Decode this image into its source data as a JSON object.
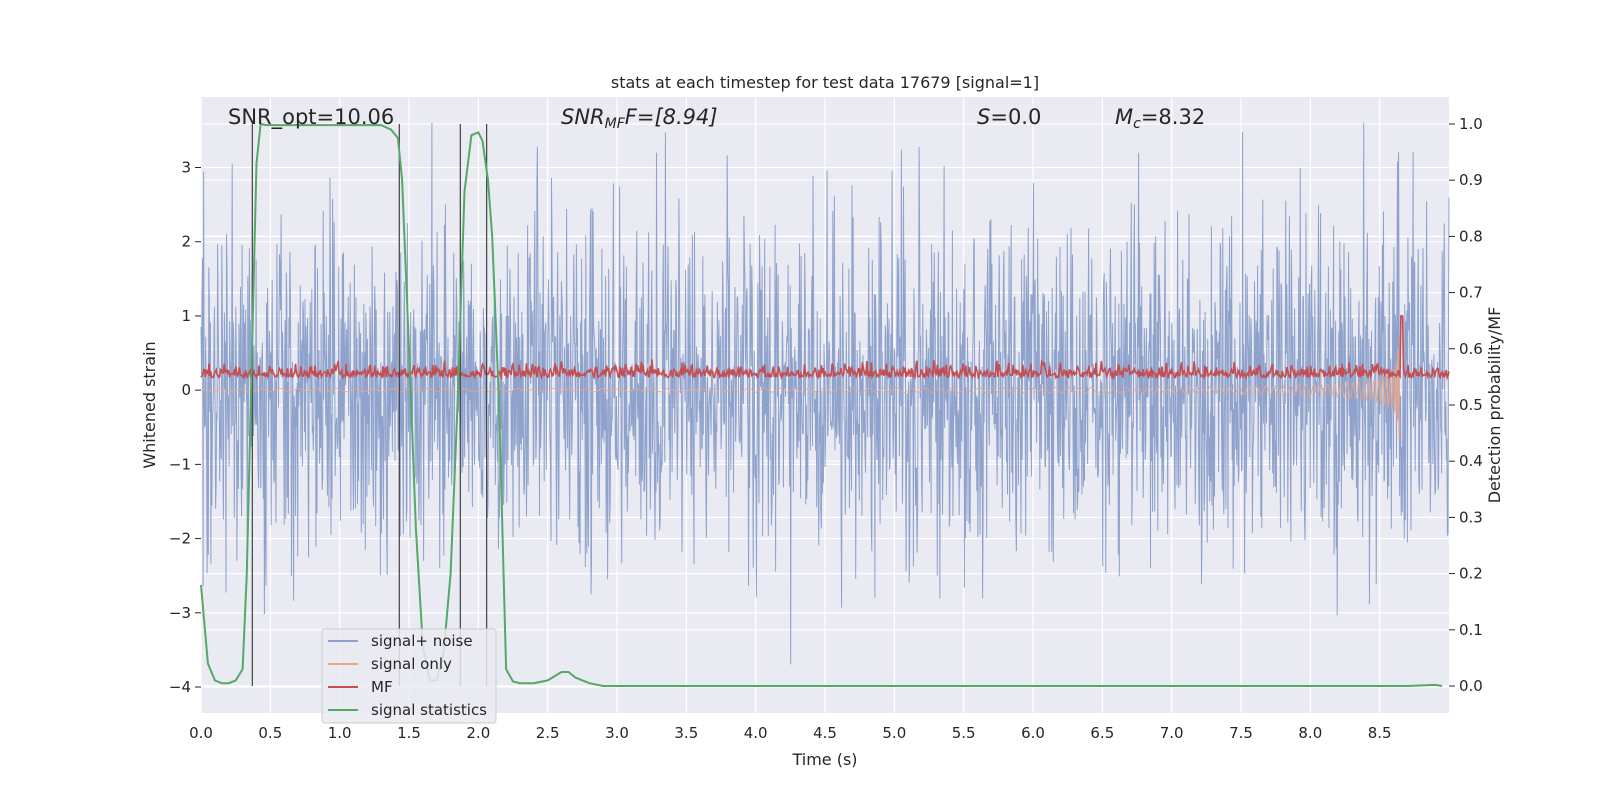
{
  "chart_data": {
    "type": "line",
    "title": "stats at each timestep for test data 17679 [signal=1]",
    "xlabel": "Time (s)",
    "ylabel": "Whitened strain",
    "ylabel_right": "Detection probability/MF",
    "xlim": [
      0.0,
      9.0
    ],
    "ylim": [
      -4.35,
      3.95
    ],
    "ylim_right": [
      -0.048,
      1.048
    ],
    "x_ticks": [
      "0.0",
      "0.5",
      "1.0",
      "1.5",
      "2.0",
      "2.5",
      "3.0",
      "3.5",
      "4.0",
      "4.5",
      "5.0",
      "5.5",
      "6.0",
      "6.5",
      "7.0",
      "7.5",
      "8.0",
      "8.5"
    ],
    "y_ticks": [
      "3",
      "2",
      "1",
      "0",
      "−1",
      "−2",
      "−3",
      "−4"
    ],
    "y_right_ticks": [
      "1.0",
      "0.9",
      "0.8",
      "0.7",
      "0.6",
      "0.5",
      "0.4",
      "0.3",
      "0.2",
      "0.1",
      "0.0"
    ],
    "grid": true,
    "legend_position": "lower-left",
    "annotations": {
      "snr_opt": "SNR_opt=10.06",
      "snr_mf_sym": "SNR",
      "snr_mf_sub": "MF",
      "snr_mf_rest": "F=[8.94]",
      "s_sym": "S",
      "s_rest": "=0.0",
      "mc_sym": "M",
      "mc_sub": "c",
      "mc_rest": "=8.32"
    },
    "vertical_markers_s": [
      0.37,
      1.43,
      1.87,
      2.06
    ],
    "series": [
      {
        "name": "signal+ noise",
        "color": "#8ea2cc",
        "axis": "left",
        "note_values": "noisy whitened strain, approx. range -3.9 to 3.6"
      },
      {
        "name": "signal only",
        "color": "#e8a58a",
        "axis": "left",
        "note_values": "chirp growing to amplitude ~1.4 at merger t~8.65 s"
      },
      {
        "name": "MF",
        "color": "#c44e52",
        "axis": "left",
        "note_values": "matched filter output ~0.1-0.4, spike ~1.0 at t~8.65 s"
      },
      {
        "name": "signal statistics",
        "color": "#55a868",
        "axis": "right",
        "x": [
          0.0,
          0.05,
          0.1,
          0.15,
          0.2,
          0.25,
          0.3,
          0.33,
          0.37,
          0.4,
          0.43,
          0.47,
          0.5,
          0.7,
          0.9,
          1.1,
          1.3,
          1.37,
          1.42,
          1.45,
          1.5,
          1.55,
          1.6,
          1.65,
          1.7,
          1.75,
          1.8,
          1.85,
          1.9,
          1.95,
          2.0,
          2.03,
          2.07,
          2.1,
          2.15,
          2.2,
          2.25,
          2.3,
          2.35,
          2.4,
          2.5,
          2.6,
          2.65,
          2.7,
          2.8,
          2.9,
          3.0,
          4.0,
          5.0,
          6.0,
          7.0,
          8.0,
          8.5,
          8.7,
          8.9,
          8.95
        ],
        "values": [
          0.18,
          0.04,
          0.01,
          0.005,
          0.005,
          0.01,
          0.03,
          0.2,
          0.62,
          0.93,
          1.0,
          0.998,
          0.998,
          0.998,
          0.998,
          0.998,
          0.998,
          0.99,
          0.975,
          0.9,
          0.6,
          0.28,
          0.07,
          0.01,
          0.01,
          0.06,
          0.2,
          0.5,
          0.88,
          0.98,
          0.985,
          0.97,
          0.9,
          0.8,
          0.5,
          0.03,
          0.008,
          0.005,
          0.005,
          0.005,
          0.01,
          0.025,
          0.025,
          0.015,
          0.005,
          0.0,
          0.0,
          0.0,
          0.0,
          0.0,
          0.0,
          0.0,
          0.0,
          0.0,
          0.002,
          0.0
        ]
      }
    ],
    "legend": [
      "signal+ noise",
      "signal only",
      "MF",
      "signal statistics"
    ]
  }
}
